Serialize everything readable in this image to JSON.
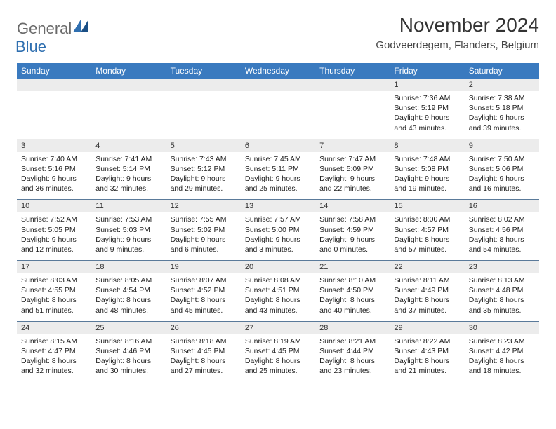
{
  "logo": {
    "text1": "General",
    "text2": "Blue",
    "color_gray": "#6a6a6a",
    "color_blue": "#2f6fb0"
  },
  "title": "November 2024",
  "subtitle": "Godveerdegem, Flanders, Belgium",
  "colors": {
    "header_bg": "#3a7abf",
    "header_text": "#ffffff",
    "daynum_bg": "#ececec",
    "divider": "#5a7a9a",
    "body_text": "#222222",
    "page_bg": "#ffffff"
  },
  "fontsize": {
    "title": 28,
    "subtitle": 15,
    "header": 12,
    "daynum": 11,
    "body": 10.5
  },
  "day_headers": [
    "Sunday",
    "Monday",
    "Tuesday",
    "Wednesday",
    "Thursday",
    "Friday",
    "Saturday"
  ],
  "weeks": [
    [
      {
        "num": "",
        "body": [
          "",
          "",
          "",
          ""
        ]
      },
      {
        "num": "",
        "body": [
          "",
          "",
          "",
          ""
        ]
      },
      {
        "num": "",
        "body": [
          "",
          "",
          "",
          ""
        ]
      },
      {
        "num": "",
        "body": [
          "",
          "",
          "",
          ""
        ]
      },
      {
        "num": "",
        "body": [
          "",
          "",
          "",
          ""
        ]
      },
      {
        "num": "1",
        "body": [
          "Sunrise: 7:36 AM",
          "Sunset: 5:19 PM",
          "Daylight: 9 hours",
          "and 43 minutes."
        ]
      },
      {
        "num": "2",
        "body": [
          "Sunrise: 7:38 AM",
          "Sunset: 5:18 PM",
          "Daylight: 9 hours",
          "and 39 minutes."
        ]
      }
    ],
    [
      {
        "num": "3",
        "body": [
          "Sunrise: 7:40 AM",
          "Sunset: 5:16 PM",
          "Daylight: 9 hours",
          "and 36 minutes."
        ]
      },
      {
        "num": "4",
        "body": [
          "Sunrise: 7:41 AM",
          "Sunset: 5:14 PM",
          "Daylight: 9 hours",
          "and 32 minutes."
        ]
      },
      {
        "num": "5",
        "body": [
          "Sunrise: 7:43 AM",
          "Sunset: 5:12 PM",
          "Daylight: 9 hours",
          "and 29 minutes."
        ]
      },
      {
        "num": "6",
        "body": [
          "Sunrise: 7:45 AM",
          "Sunset: 5:11 PM",
          "Daylight: 9 hours",
          "and 25 minutes."
        ]
      },
      {
        "num": "7",
        "body": [
          "Sunrise: 7:47 AM",
          "Sunset: 5:09 PM",
          "Daylight: 9 hours",
          "and 22 minutes."
        ]
      },
      {
        "num": "8",
        "body": [
          "Sunrise: 7:48 AM",
          "Sunset: 5:08 PM",
          "Daylight: 9 hours",
          "and 19 minutes."
        ]
      },
      {
        "num": "9",
        "body": [
          "Sunrise: 7:50 AM",
          "Sunset: 5:06 PM",
          "Daylight: 9 hours",
          "and 16 minutes."
        ]
      }
    ],
    [
      {
        "num": "10",
        "body": [
          "Sunrise: 7:52 AM",
          "Sunset: 5:05 PM",
          "Daylight: 9 hours",
          "and 12 minutes."
        ]
      },
      {
        "num": "11",
        "body": [
          "Sunrise: 7:53 AM",
          "Sunset: 5:03 PM",
          "Daylight: 9 hours",
          "and 9 minutes."
        ]
      },
      {
        "num": "12",
        "body": [
          "Sunrise: 7:55 AM",
          "Sunset: 5:02 PM",
          "Daylight: 9 hours",
          "and 6 minutes."
        ]
      },
      {
        "num": "13",
        "body": [
          "Sunrise: 7:57 AM",
          "Sunset: 5:00 PM",
          "Daylight: 9 hours",
          "and 3 minutes."
        ]
      },
      {
        "num": "14",
        "body": [
          "Sunrise: 7:58 AM",
          "Sunset: 4:59 PM",
          "Daylight: 9 hours",
          "and 0 minutes."
        ]
      },
      {
        "num": "15",
        "body": [
          "Sunrise: 8:00 AM",
          "Sunset: 4:57 PM",
          "Daylight: 8 hours",
          "and 57 minutes."
        ]
      },
      {
        "num": "16",
        "body": [
          "Sunrise: 8:02 AM",
          "Sunset: 4:56 PM",
          "Daylight: 8 hours",
          "and 54 minutes."
        ]
      }
    ],
    [
      {
        "num": "17",
        "body": [
          "Sunrise: 8:03 AM",
          "Sunset: 4:55 PM",
          "Daylight: 8 hours",
          "and 51 minutes."
        ]
      },
      {
        "num": "18",
        "body": [
          "Sunrise: 8:05 AM",
          "Sunset: 4:54 PM",
          "Daylight: 8 hours",
          "and 48 minutes."
        ]
      },
      {
        "num": "19",
        "body": [
          "Sunrise: 8:07 AM",
          "Sunset: 4:52 PM",
          "Daylight: 8 hours",
          "and 45 minutes."
        ]
      },
      {
        "num": "20",
        "body": [
          "Sunrise: 8:08 AM",
          "Sunset: 4:51 PM",
          "Daylight: 8 hours",
          "and 43 minutes."
        ]
      },
      {
        "num": "21",
        "body": [
          "Sunrise: 8:10 AM",
          "Sunset: 4:50 PM",
          "Daylight: 8 hours",
          "and 40 minutes."
        ]
      },
      {
        "num": "22",
        "body": [
          "Sunrise: 8:11 AM",
          "Sunset: 4:49 PM",
          "Daylight: 8 hours",
          "and 37 minutes."
        ]
      },
      {
        "num": "23",
        "body": [
          "Sunrise: 8:13 AM",
          "Sunset: 4:48 PM",
          "Daylight: 8 hours",
          "and 35 minutes."
        ]
      }
    ],
    [
      {
        "num": "24",
        "body": [
          "Sunrise: 8:15 AM",
          "Sunset: 4:47 PM",
          "Daylight: 8 hours",
          "and 32 minutes."
        ]
      },
      {
        "num": "25",
        "body": [
          "Sunrise: 8:16 AM",
          "Sunset: 4:46 PM",
          "Daylight: 8 hours",
          "and 30 minutes."
        ]
      },
      {
        "num": "26",
        "body": [
          "Sunrise: 8:18 AM",
          "Sunset: 4:45 PM",
          "Daylight: 8 hours",
          "and 27 minutes."
        ]
      },
      {
        "num": "27",
        "body": [
          "Sunrise: 8:19 AM",
          "Sunset: 4:45 PM",
          "Daylight: 8 hours",
          "and 25 minutes."
        ]
      },
      {
        "num": "28",
        "body": [
          "Sunrise: 8:21 AM",
          "Sunset: 4:44 PM",
          "Daylight: 8 hours",
          "and 23 minutes."
        ]
      },
      {
        "num": "29",
        "body": [
          "Sunrise: 8:22 AM",
          "Sunset: 4:43 PM",
          "Daylight: 8 hours",
          "and 21 minutes."
        ]
      },
      {
        "num": "30",
        "body": [
          "Sunrise: 8:23 AM",
          "Sunset: 4:42 PM",
          "Daylight: 8 hours",
          "and 18 minutes."
        ]
      }
    ]
  ]
}
